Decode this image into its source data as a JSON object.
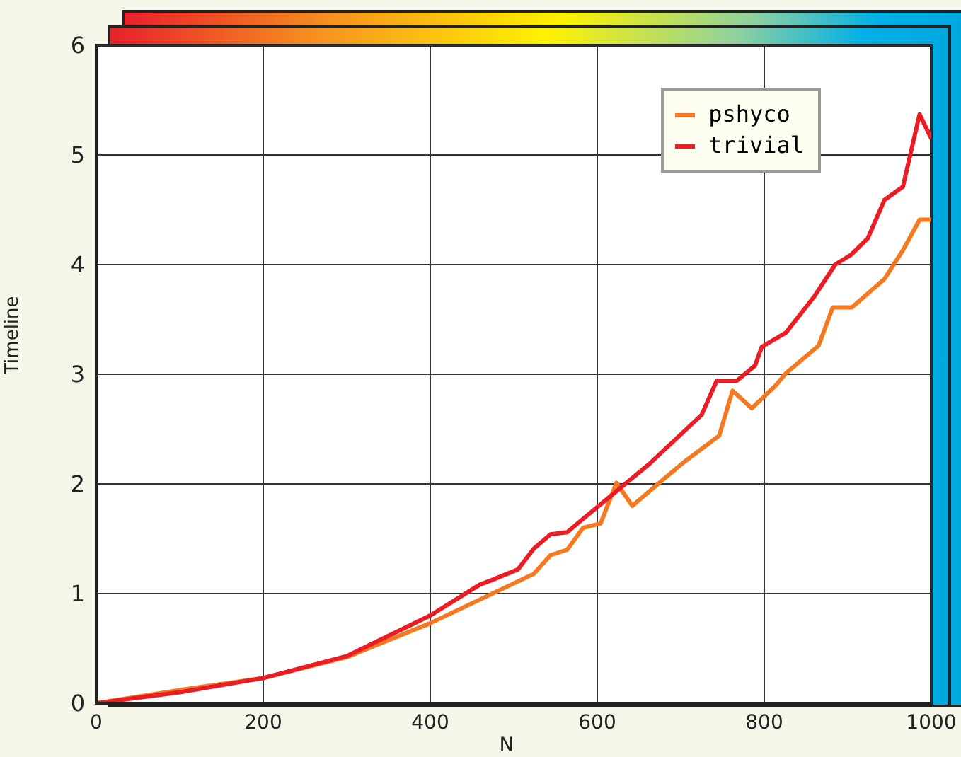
{
  "chart_data": {
    "type": "line",
    "xlabel": "N",
    "ylabel": "Timeline",
    "xlim": [
      0,
      1000
    ],
    "xticks": [
      0,
      200,
      400,
      600,
      800,
      1000
    ],
    "ylim": [
      0,
      6
    ],
    "yticks": [
      0,
      1,
      2,
      3,
      4,
      5,
      6
    ],
    "grid": true,
    "legend": "top right",
    "marker": "none",
    "line_style": "solid",
    "series": [
      {
        "name": "pshyco",
        "color": "#f47920",
        "x": [
          0,
          100,
          200,
          300,
          400,
          524,
          544,
          564,
          583,
          604,
          623,
          642,
          679,
          704,
          746,
          762,
          785,
          814,
          826,
          865,
          882,
          905,
          944,
          966,
          986,
          1000
        ],
        "values": [
          0,
          0.12,
          0.23,
          0.42,
          0.73,
          1.18,
          1.35,
          1.4,
          1.6,
          1.64,
          2.01,
          1.8,
          2.04,
          2.2,
          2.44,
          2.85,
          2.69,
          2.9,
          3.01,
          3.26,
          3.61,
          3.61,
          3.87,
          4.13,
          4.41,
          4.41
        ]
      },
      {
        "name": "trivial",
        "color": "#ec1c24",
        "x": [
          0,
          100,
          200,
          300,
          400,
          459,
          476,
          505,
          524,
          544,
          564,
          578,
          662,
          725,
          743,
          767,
          789,
          797,
          826,
          860,
          885,
          904,
          924,
          944,
          966,
          986,
          1000
        ],
        "values": [
          0,
          0.1,
          0.23,
          0.43,
          0.8,
          1.08,
          1.13,
          1.22,
          1.41,
          1.54,
          1.56,
          1.65,
          2.18,
          2.63,
          2.94,
          2.94,
          3.08,
          3.25,
          3.38,
          3.71,
          4.0,
          4.09,
          4.24,
          4.59,
          4.71,
          5.37,
          5.15
        ]
      }
    ]
  }
}
